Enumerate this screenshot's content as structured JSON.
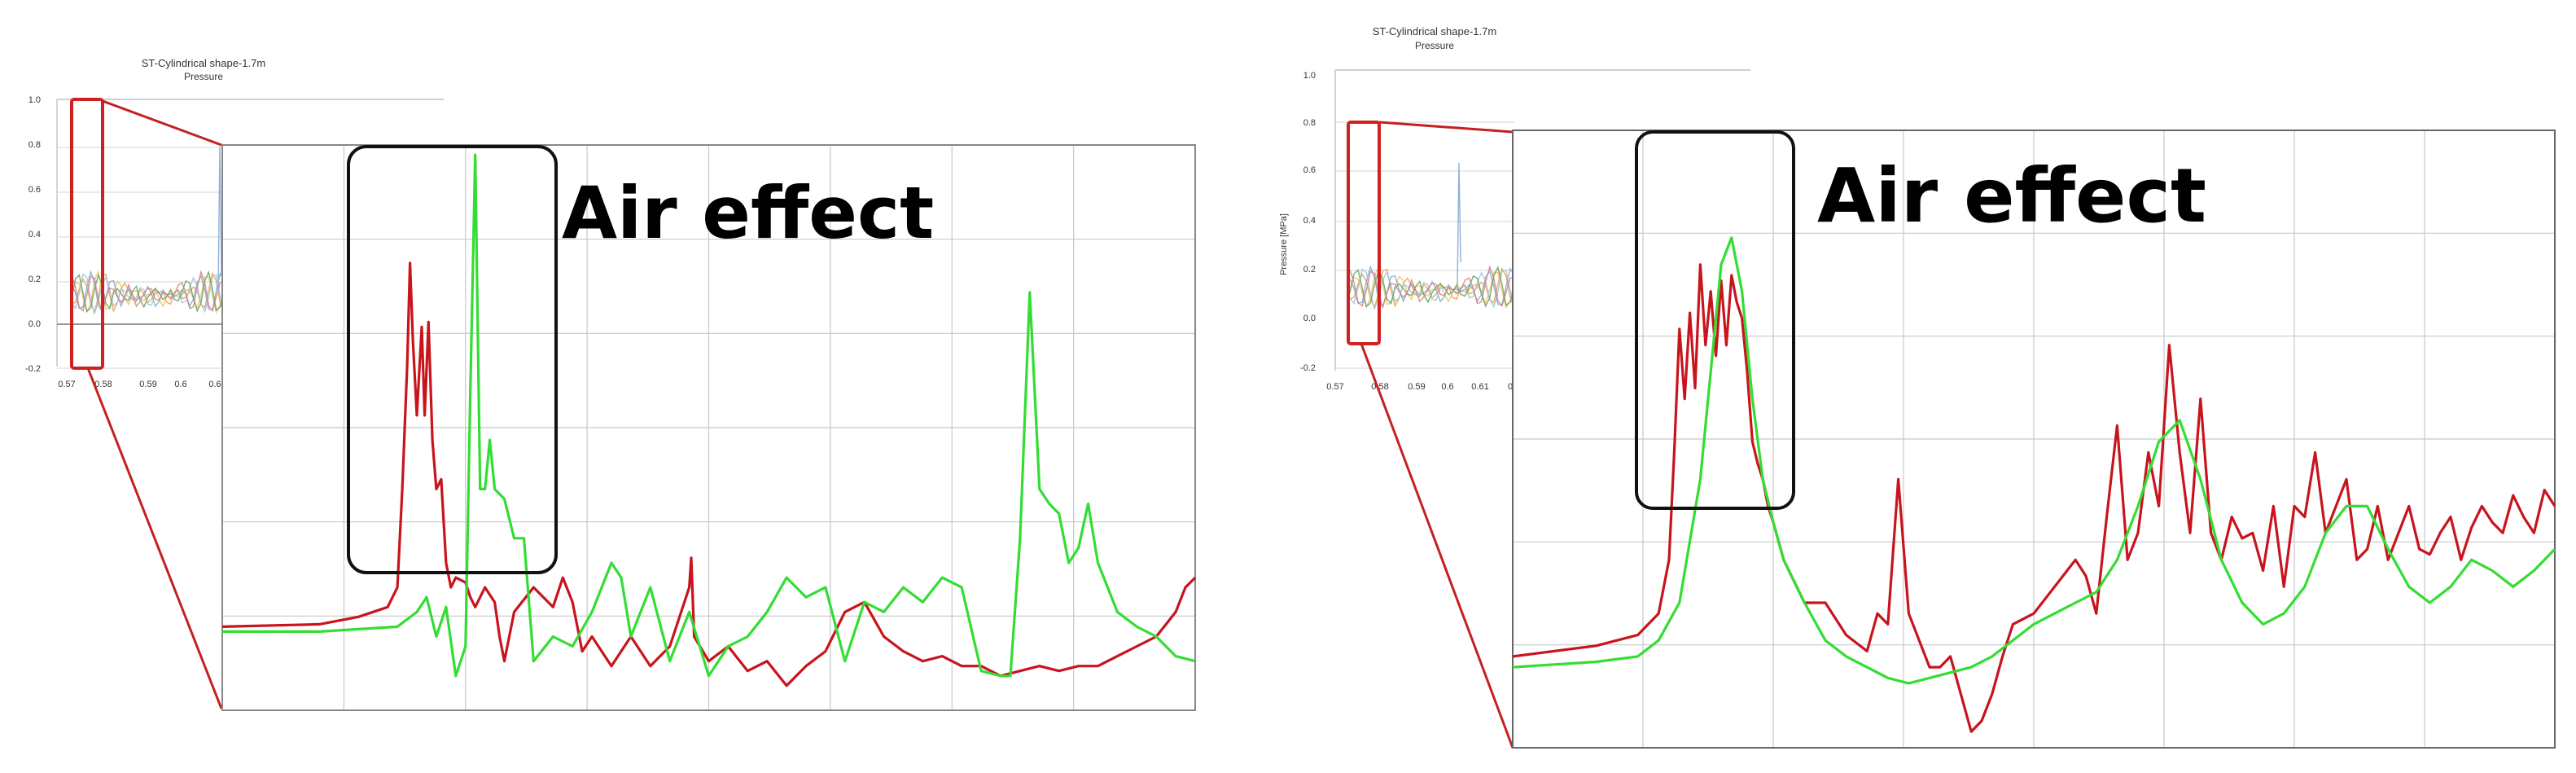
{
  "panels": [
    {
      "inset_title": "ST-Cylindrical shape-1.7m",
      "inset_subtitle": "Pressure",
      "inset_ylabel": "",
      "inset_yticks": [
        "1.0",
        "0.8",
        "0.6",
        "0.4",
        "0.2",
        "0.0",
        "-0.2"
      ],
      "inset_xticks": [
        "0.57",
        "0.58",
        "0.59",
        "0.6",
        "0.6"
      ],
      "annotation": "Air effect"
    },
    {
      "inset_title": "ST-Cylindrical shape-1.7m",
      "inset_subtitle": "Pressure",
      "inset_ylabel": "Pressure [MPa]",
      "inset_yticks": [
        "1.0",
        "0.8",
        "0.6",
        "0.4",
        "0.2",
        "0.0",
        "-0.2"
      ],
      "inset_xticks": [
        "0.57",
        "0.58",
        "0.59",
        "0.6",
        "0.61",
        "0"
      ],
      "annotation": "Air effect"
    }
  ],
  "colors": {
    "red": "#c8141c",
    "green": "#33dd33",
    "box_red": "#d02020",
    "grid": "#c8c8c8",
    "inset_colors": [
      "#e8a040",
      "#f0c060",
      "#7fa8d0",
      "#a0c0e0",
      "#60a060",
      "#d08080"
    ]
  },
  "chart_data": [
    {
      "type": "line",
      "title": "",
      "xlabel": "",
      "ylabel": "",
      "xlim": [
        0,
        100
      ],
      "ylim": [
        -0.15,
        1.0
      ],
      "grid": true,
      "series": [
        {
          "color": "red",
          "x": [
            0,
            10,
            14,
            17,
            18,
            18.5,
            19,
            19.3,
            19.6,
            20,
            20.5,
            20.8,
            21.2,
            21.6,
            22,
            22.5,
            23,
            23.5,
            24,
            25,
            25.5,
            26,
            27,
            28,
            28.5,
            29,
            30,
            32,
            34,
            35,
            36,
            37,
            38,
            40,
            42,
            44,
            46,
            48,
            48.2,
            48.5,
            50,
            52,
            54,
            56,
            58,
            60,
            62,
            64,
            66,
            68,
            70,
            72,
            74,
            76,
            78,
            80,
            82,
            84,
            86,
            88,
            90,
            92,
            94,
            96,
            98,
            99,
            100
          ],
          "y": [
            0.02,
            0.025,
            0.04,
            0.06,
            0.1,
            0.3,
            0.55,
            0.76,
            0.6,
            0.45,
            0.63,
            0.45,
            0.64,
            0.4,
            0.3,
            0.32,
            0.15,
            0.1,
            0.12,
            0.11,
            0.08,
            0.06,
            0.1,
            0.07,
            0.0,
            -0.05,
            0.05,
            0.1,
            0.06,
            0.12,
            0.07,
            -0.03,
            0.0,
            -0.06,
            0.0,
            -0.06,
            -0.02,
            0.1,
            0.16,
            0.0,
            -0.05,
            -0.02,
            -0.07,
            -0.05,
            -0.1,
            -0.06,
            -0.03,
            0.05,
            0.07,
            0.0,
            -0.03,
            -0.05,
            -0.04,
            -0.06,
            -0.06,
            -0.08,
            -0.07,
            -0.06,
            -0.07,
            -0.06,
            -0.06,
            -0.04,
            -0.02,
            0.0,
            0.05,
            0.1,
            0.12
          ]
        },
        {
          "color": "green",
          "x": [
            0,
            10,
            18,
            20,
            21,
            22,
            23,
            24,
            24.5,
            25,
            25.5,
            26,
            26.5,
            27,
            27.5,
            28,
            29,
            30,
            31,
            32,
            34,
            36,
            38,
            40,
            41,
            42,
            44,
            46,
            48,
            50,
            52,
            54,
            56,
            58,
            60,
            62,
            64,
            66,
            68,
            70,
            72,
            74,
            76,
            78,
            80,
            81,
            82,
            83,
            84,
            85,
            86,
            87,
            88,
            89,
            90,
            91,
            92,
            94,
            96,
            98,
            100
          ],
          "y": [
            0.01,
            0.01,
            0.02,
            0.05,
            0.08,
            0.0,
            0.06,
            -0.08,
            -0.05,
            -0.02,
            0.5,
            0.98,
            0.3,
            0.3,
            0.4,
            0.3,
            0.28,
            0.2,
            0.2,
            -0.05,
            0.0,
            -0.02,
            0.05,
            0.15,
            0.12,
            0.0,
            0.1,
            -0.05,
            0.05,
            -0.08,
            -0.02,
            0.0,
            0.05,
            0.12,
            0.08,
            0.1,
            -0.05,
            0.07,
            0.05,
            0.1,
            0.07,
            0.12,
            0.1,
            -0.07,
            -0.08,
            -0.08,
            0.2,
            0.7,
            0.3,
            0.27,
            0.25,
            0.15,
            0.18,
            0.27,
            0.15,
            0.1,
            0.05,
            0.02,
            0.0,
            -0.04,
            -0.05
          ]
        }
      ]
    },
    {
      "type": "line",
      "title": "",
      "xlabel": "",
      "ylabel": "",
      "xlim": [
        0,
        100
      ],
      "ylim": [
        -0.15,
        1.0
      ],
      "grid": true,
      "series": [
        {
          "color": "red",
          "x": [
            0,
            8,
            12,
            14,
            15,
            15.5,
            16,
            16.5,
            17,
            17.5,
            18,
            18.5,
            19,
            19.5,
            20,
            20.5,
            21,
            21.5,
            22,
            22.5,
            23,
            23.5,
            24,
            24.5,
            25,
            26,
            28,
            30,
            32,
            34,
            35,
            36,
            37,
            38,
            40,
            41,
            42,
            43,
            44,
            45,
            46,
            47,
            48,
            50,
            52,
            54,
            55,
            56,
            57,
            58,
            59,
            60,
            61,
            62,
            63,
            64,
            65,
            66,
            67,
            68,
            69,
            70,
            71,
            72,
            73,
            74,
            75,
            76,
            77,
            78,
            79,
            80,
            81,
            82,
            83,
            84,
            85,
            86,
            87,
            88,
            89,
            90,
            91,
            92,
            93,
            94,
            95,
            96,
            97,
            98,
            99,
            100
          ],
          "y": [
            0.02,
            0.04,
            0.06,
            0.1,
            0.2,
            0.4,
            0.63,
            0.5,
            0.66,
            0.52,
            0.75,
            0.6,
            0.7,
            0.58,
            0.72,
            0.6,
            0.73,
            0.68,
            0.65,
            0.55,
            0.42,
            0.38,
            0.35,
            0.3,
            0.27,
            0.2,
            0.12,
            0.12,
            0.06,
            0.03,
            0.1,
            0.08,
            0.35,
            0.1,
            0.0,
            0.0,
            0.02,
            -0.05,
            -0.12,
            -0.1,
            -0.05,
            0.02,
            0.08,
            0.1,
            0.15,
            0.2,
            0.17,
            0.1,
            0.28,
            0.45,
            0.2,
            0.25,
            0.4,
            0.3,
            0.6,
            0.4,
            0.25,
            0.5,
            0.25,
            0.2,
            0.28,
            0.24,
            0.25,
            0.18,
            0.3,
            0.15,
            0.3,
            0.28,
            0.4,
            0.25,
            0.3,
            0.35,
            0.2,
            0.22,
            0.3,
            0.2,
            0.25,
            0.3,
            0.22,
            0.21,
            0.25,
            0.28,
            0.2,
            0.26,
            0.3,
            0.27,
            0.25,
            0.32,
            0.28,
            0.25,
            0.33,
            0.3
          ]
        },
        {
          "color": "green",
          "x": [
            0,
            8,
            12,
            14,
            16,
            18,
            19,
            20,
            21,
            22,
            23,
            24,
            25,
            26,
            28,
            30,
            32,
            34,
            36,
            38,
            40,
            42,
            44,
            46,
            48,
            50,
            52,
            54,
            56,
            58,
            60,
            62,
            64,
            66,
            68,
            70,
            72,
            74,
            76,
            78,
            80,
            82,
            84,
            86,
            88,
            90,
            92,
            94,
            96,
            98,
            100
          ],
          "y": [
            0.0,
            0.01,
            0.02,
            0.05,
            0.12,
            0.35,
            0.55,
            0.75,
            0.8,
            0.7,
            0.5,
            0.35,
            0.27,
            0.2,
            0.12,
            0.05,
            0.02,
            0.0,
            -0.02,
            -0.03,
            -0.02,
            -0.01,
            0.0,
            0.02,
            0.05,
            0.08,
            0.1,
            0.12,
            0.14,
            0.2,
            0.3,
            0.42,
            0.46,
            0.35,
            0.2,
            0.12,
            0.08,
            0.1,
            0.15,
            0.25,
            0.3,
            0.3,
            0.22,
            0.15,
            0.12,
            0.15,
            0.2,
            0.18,
            0.15,
            0.18,
            0.22
          ]
        }
      ]
    }
  ]
}
